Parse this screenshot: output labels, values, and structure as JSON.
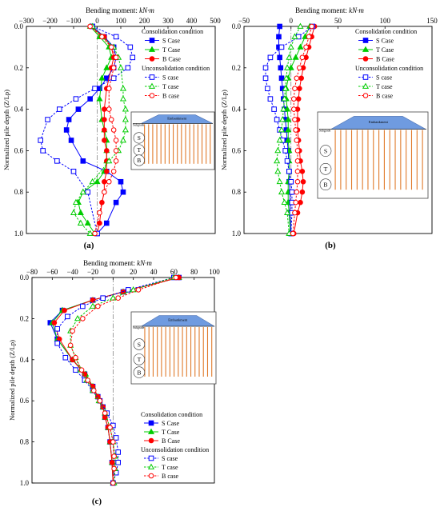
{
  "figure": {
    "panel_labels": [
      "(a)",
      "(b)",
      "(c)"
    ]
  },
  "inset": {
    "embankment_label": "Embankment",
    "subgrade_label": "Subgrade",
    "circle_labels": [
      "S",
      "T",
      "B"
    ]
  },
  "legend": {
    "group1": "Consolidation condition",
    "group2": "Unconsolidation condition",
    "entries": [
      {
        "label": "S Case",
        "color": "#0000ff",
        "marker": "square",
        "filled": true,
        "dash": false
      },
      {
        "label": "T Case",
        "color": "#00cc00",
        "marker": "triangle",
        "filled": true,
        "dash": false
      },
      {
        "label": "B Case",
        "color": "#ff0000",
        "marker": "circle",
        "filled": true,
        "dash": false
      },
      {
        "label": "S case",
        "color": "#0000ff",
        "marker": "square",
        "filled": false,
        "dash": true
      },
      {
        "label": "T case",
        "color": "#00cc00",
        "marker": "triangle",
        "filled": false,
        "dash": true
      },
      {
        "label": "B case",
        "color": "#ff0000",
        "marker": "circle",
        "filled": false,
        "dash": true
      }
    ]
  },
  "chart_data": [
    {
      "panel": "(a)",
      "type": "line",
      "xlabel": "Bending moment: kN·m",
      "ylabel": "Normalized pile depth (Z/Lp)",
      "xlim": [
        -300,
        500
      ],
      "ylim": [
        0,
        1
      ],
      "xticks": [
        -300,
        -200,
        -100,
        0,
        100,
        200,
        300,
        400,
        500
      ],
      "yticks": [
        0,
        0.2,
        0.4,
        0.6,
        0.8,
        1.0
      ],
      "ytick_labels": [
        "0.0",
        "0.2",
        "0.4",
        "0.6",
        "0.8",
        "1.0"
      ],
      "series": [
        {
          "name": "S Case",
          "x": [
            -20,
            30,
            70,
            80,
            70,
            40,
            10,
            -30,
            -80,
            -120,
            -130,
            -110,
            -60,
            40,
            100,
            110,
            80,
            40,
            0
          ],
          "y": [
            0,
            0.05,
            0.1,
            0.15,
            0.2,
            0.25,
            0.3,
            0.35,
            0.4,
            0.45,
            0.5,
            0.55,
            0.65,
            0.7,
            0.75,
            0.8,
            0.85,
            0.95,
            1.0
          ]
        },
        {
          "name": "T Case",
          "x": [
            -30,
            10,
            50,
            60,
            40,
            20,
            10,
            20,
            30,
            40,
            40,
            40,
            30,
            0,
            -60,
            -80,
            -70,
            -40,
            -10
          ],
          "y": [
            0,
            0.05,
            0.1,
            0.15,
            0.2,
            0.25,
            0.35,
            0.45,
            0.5,
            0.55,
            0.6,
            0.65,
            0.7,
            0.75,
            0.8,
            0.85,
            0.9,
            0.95,
            1.0
          ]
        },
        {
          "name": "B Case",
          "x": [
            -30,
            30,
            60,
            70,
            60,
            40,
            30,
            30,
            30,
            30,
            40,
            40,
            40,
            30,
            30,
            20,
            10,
            0
          ],
          "y": [
            0,
            0.05,
            0.1,
            0.15,
            0.2,
            0.3,
            0.4,
            0.45,
            0.5,
            0.55,
            0.6,
            0.65,
            0.7,
            0.75,
            0.8,
            0.85,
            0.95,
            1.0
          ]
        },
        {
          "name": "S case",
          "x": [
            -20,
            80,
            140,
            150,
            130,
            70,
            -10,
            -90,
            -160,
            -210,
            -240,
            -230,
            -170,
            -100,
            -40,
            0
          ],
          "y": [
            0,
            0.05,
            0.1,
            0.15,
            0.2,
            0.25,
            0.3,
            0.35,
            0.4,
            0.45,
            0.55,
            0.6,
            0.65,
            0.7,
            0.8,
            1.0
          ]
        },
        {
          "name": "T case",
          "x": [
            -20,
            20,
            70,
            90,
            100,
            110,
            110,
            120,
            120,
            120,
            110,
            90,
            50,
            -20,
            -60,
            -90,
            -100,
            -70,
            -30
          ],
          "y": [
            0,
            0.05,
            0.1,
            0.15,
            0.2,
            0.3,
            0.35,
            0.4,
            0.45,
            0.5,
            0.55,
            0.6,
            0.65,
            0.75,
            0.8,
            0.85,
            0.9,
            0.95,
            1.0
          ]
        },
        {
          "name": "B case",
          "x": [
            -30,
            20,
            60,
            80,
            70,
            50,
            50,
            60,
            70,
            80,
            80,
            80,
            70,
            50,
            30,
            10,
            -10
          ],
          "y": [
            0,
            0.05,
            0.1,
            0.15,
            0.2,
            0.3,
            0.4,
            0.45,
            0.5,
            0.55,
            0.6,
            0.65,
            0.7,
            0.75,
            0.8,
            0.9,
            1.0
          ]
        }
      ]
    },
    {
      "panel": "(b)",
      "type": "line",
      "xlabel": "Bending moment: kN·m",
      "ylabel": "Normalized pile depth (Z/Lp)",
      "xlim": [
        -50,
        150
      ],
      "ylim": [
        0,
        1
      ],
      "xticks": [
        -50,
        0,
        50,
        100,
        150
      ],
      "yticks": [
        0,
        0.2,
        0.4,
        0.6,
        0.8,
        1.0
      ],
      "ytick_labels": [
        "0.0",
        "0.2",
        "0.4",
        "0.6",
        "0.8",
        "1.0"
      ],
      "series": [
        {
          "name": "S Case",
          "x": [
            -12,
            -13,
            -13,
            -12,
            -11,
            -10,
            -9,
            -8,
            -7,
            -6,
            -5,
            -4,
            -3,
            -2,
            -2,
            -1,
            -1,
            -1,
            0
          ],
          "y": [
            0,
            0.05,
            0.1,
            0.15,
            0.2,
            0.25,
            0.3,
            0.35,
            0.4,
            0.45,
            0.5,
            0.55,
            0.6,
            0.7,
            0.75,
            0.8,
            0.85,
            0.9,
            1.0
          ]
        },
        {
          "name": "T Case",
          "x": [
            20,
            15,
            10,
            5,
            0,
            -3,
            -5,
            -5,
            -4,
            -3,
            -3,
            -3,
            -2,
            -2,
            -2,
            -3,
            -3,
            -3,
            -2,
            -1
          ],
          "y": [
            0,
            0.05,
            0.1,
            0.15,
            0.2,
            0.25,
            0.3,
            0.35,
            0.4,
            0.45,
            0.5,
            0.55,
            0.6,
            0.65,
            0.7,
            0.75,
            0.8,
            0.85,
            0.9,
            1.0
          ]
        },
        {
          "name": "B Case",
          "x": [
            25,
            22,
            19,
            16,
            13,
            11,
            9,
            8,
            7,
            7,
            7,
            8,
            9,
            10,
            12,
            13,
            12,
            10,
            7,
            3
          ],
          "y": [
            0,
            0.05,
            0.1,
            0.15,
            0.2,
            0.25,
            0.3,
            0.35,
            0.4,
            0.45,
            0.5,
            0.55,
            0.6,
            0.65,
            0.7,
            0.75,
            0.8,
            0.85,
            0.9,
            1.0
          ]
        },
        {
          "name": "S case",
          "x": [
            23,
            8,
            -10,
            -22,
            -27,
            -27,
            -25,
            -22,
            -18,
            -15,
            -12,
            -9,
            -6,
            -4,
            -2,
            0,
            1,
            1,
            1,
            0
          ],
          "y": [
            0,
            0.05,
            0.1,
            0.15,
            0.2,
            0.25,
            0.3,
            0.35,
            0.4,
            0.45,
            0.5,
            0.55,
            0.6,
            0.65,
            0.7,
            0.75,
            0.8,
            0.85,
            0.9,
            1.0
          ]
        },
        {
          "name": "T case",
          "x": [
            10,
            4,
            0,
            -2,
            -4,
            -5,
            -6,
            -7,
            -8,
            -9,
            -10,
            -12,
            -14,
            -15,
            -14,
            -12,
            -10,
            -7,
            -4,
            -2
          ],
          "y": [
            0,
            0.05,
            0.1,
            0.15,
            0.2,
            0.25,
            0.3,
            0.35,
            0.4,
            0.45,
            0.5,
            0.55,
            0.6,
            0.65,
            0.7,
            0.75,
            0.8,
            0.85,
            0.9,
            1.0
          ]
        },
        {
          "name": "B case",
          "x": [
            22,
            19,
            16,
            12,
            9,
            6,
            4,
            3,
            3,
            4,
            5,
            6,
            7,
            7,
            7,
            7,
            6,
            5,
            4,
            2
          ],
          "y": [
            0,
            0.05,
            0.1,
            0.15,
            0.2,
            0.25,
            0.3,
            0.35,
            0.4,
            0.45,
            0.5,
            0.55,
            0.6,
            0.65,
            0.7,
            0.75,
            0.8,
            0.85,
            0.9,
            1.0
          ]
        }
      ]
    },
    {
      "panel": "(c)",
      "type": "line",
      "xlabel": "Bending moment: kN·m",
      "ylabel": "Normalized pile depth (Z/Lp)",
      "xlim": [
        -80,
        100
      ],
      "ylim": [
        0,
        1
      ],
      "xticks": [
        -80,
        -60,
        -40,
        -20,
        0,
        20,
        40,
        60,
        80,
        100
      ],
      "yticks": [
        0,
        0.2,
        0.4,
        0.6,
        0.8,
        1.0
      ],
      "ytick_labels": [
        "0.0",
        "0.2",
        "0.4",
        "0.6",
        "0.8",
        "1.0"
      ],
      "series": [
        {
          "name": "S Case",
          "x": [
            65,
            10,
            -20,
            -50,
            -62,
            -55,
            -40,
            -28,
            -20,
            -15,
            -10,
            -8,
            -5,
            -3,
            -1,
            0
          ],
          "y": [
            0,
            0.07,
            0.11,
            0.16,
            0.22,
            0.3,
            0.4,
            0.47,
            0.53,
            0.58,
            0.63,
            0.68,
            0.73,
            0.8,
            0.9,
            1.0
          ]
        },
        {
          "name": "T Case",
          "x": [
            65,
            10,
            -20,
            -50,
            -60,
            -55,
            -40,
            -27,
            -20,
            -15,
            -10,
            -8,
            -5,
            -3,
            -1,
            0
          ],
          "y": [
            0,
            0.07,
            0.11,
            0.16,
            0.22,
            0.3,
            0.4,
            0.47,
            0.53,
            0.58,
            0.63,
            0.68,
            0.73,
            0.8,
            0.9,
            1.0
          ]
        },
        {
          "name": "B Case",
          "x": [
            65,
            10,
            -20,
            -48,
            -58,
            -53,
            -40,
            -28,
            -20,
            -15,
            -10,
            -8,
            -5,
            -3,
            -1,
            0
          ],
          "y": [
            0,
            0.07,
            0.11,
            0.16,
            0.22,
            0.3,
            0.4,
            0.47,
            0.53,
            0.58,
            0.63,
            0.68,
            0.73,
            0.8,
            0.9,
            1.0
          ]
        },
        {
          "name": "S case",
          "x": [
            60,
            15,
            -10,
            -30,
            -45,
            -55,
            -55,
            -47,
            -37,
            -28,
            -20,
            -13,
            -6,
            0,
            3,
            5,
            5,
            3,
            0
          ],
          "y": [
            0,
            0.06,
            0.1,
            0.14,
            0.19,
            0.25,
            0.32,
            0.39,
            0.45,
            0.5,
            0.55,
            0.6,
            0.66,
            0.72,
            0.78,
            0.85,
            0.9,
            0.95,
            1.0
          ]
        },
        {
          "name": "T case",
          "x": [
            60,
            20,
            0,
            -20,
            -35,
            -42,
            -42,
            -37,
            -32,
            -26,
            -20,
            -14,
            -8,
            -3,
            0,
            2,
            2,
            1
          ],
          "y": [
            0,
            0.06,
            0.1,
            0.14,
            0.2,
            0.26,
            0.33,
            0.39,
            0.45,
            0.5,
            0.55,
            0.6,
            0.66,
            0.73,
            0.8,
            0.87,
            0.93,
            1.0
          ]
        },
        {
          "name": "B case",
          "x": [
            62,
            25,
            5,
            -15,
            -30,
            -40,
            -42,
            -37,
            -31,
            -25,
            -19,
            -13,
            -8,
            -3,
            0,
            1,
            1,
            0
          ],
          "y": [
            0,
            0.06,
            0.1,
            0.14,
            0.2,
            0.26,
            0.33,
            0.39,
            0.45,
            0.5,
            0.55,
            0.6,
            0.66,
            0.73,
            0.8,
            0.87,
            0.93,
            1.0
          ]
        }
      ]
    }
  ]
}
